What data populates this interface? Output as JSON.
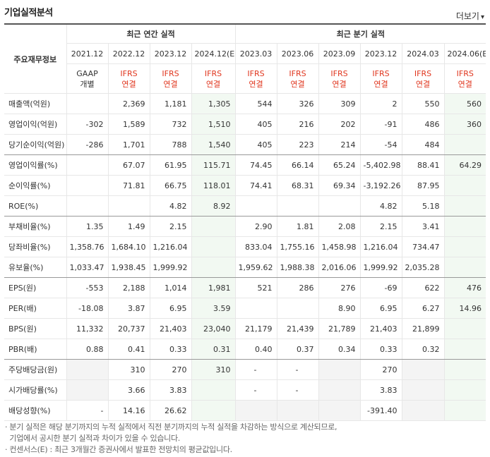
{
  "title": "기업실적분석",
  "more_label": "더보기",
  "more_icon": "chevron-down-icon",
  "header": {
    "row_label": "주요재무정보",
    "annual_group": "최근 연간 실적",
    "quarter_group": "최근 분기 실적",
    "periods": [
      "2021.12",
      "2022.12",
      "2023.12",
      "2024.12(E)",
      "2023.03",
      "2023.06",
      "2023.09",
      "2023.12",
      "2024.03",
      "2024.06(E)"
    ],
    "basis": [
      {
        "top": "GAAP",
        "bottom": "개별",
        "red": false
      },
      {
        "top": "IFRS",
        "bottom": "연결",
        "red": true
      },
      {
        "top": "IFRS",
        "bottom": "연결",
        "red": true
      },
      {
        "top": "IFRS",
        "bottom": "연결",
        "red": true
      },
      {
        "top": "IFRS",
        "bottom": "연결",
        "red": true
      },
      {
        "top": "IFRS",
        "bottom": "연결",
        "red": true
      },
      {
        "top": "IFRS",
        "bottom": "연결",
        "red": true
      },
      {
        "top": "IFRS",
        "bottom": "연결",
        "red": true
      },
      {
        "top": "IFRS",
        "bottom": "연결",
        "red": true
      },
      {
        "top": "IFRS",
        "bottom": "연결",
        "red": true
      }
    ]
  },
  "rows": [
    {
      "label": "매출액(억원)",
      "values": [
        "",
        "2,369",
        "1,181",
        "1,305",
        "544",
        "326",
        "309",
        "2",
        "550",
        "560"
      ]
    },
    {
      "label": "영업이익(억원)",
      "values": [
        "-302",
        "1,589",
        "732",
        "1,510",
        "405",
        "216",
        "202",
        "-91",
        "486",
        "360"
      ]
    },
    {
      "label": "당기순이익(억원)",
      "values": [
        "-286",
        "1,701",
        "788",
        "1,540",
        "405",
        "223",
        "214",
        "-54",
        "484",
        ""
      ]
    },
    {
      "label": "영업이익률(%)",
      "values": [
        "",
        "67.07",
        "61.95",
        "115.71",
        "74.45",
        "66.14",
        "65.24",
        "-5,402.98",
        "88.41",
        "64.29"
      ]
    },
    {
      "label": "순이익률(%)",
      "values": [
        "",
        "71.81",
        "66.75",
        "118.01",
        "74.41",
        "68.31",
        "69.34",
        "-3,192.26",
        "87.95",
        ""
      ]
    },
    {
      "label": "ROE(%)",
      "values": [
        "",
        "",
        "4.82",
        "8.92",
        "",
        "",
        "",
        "4.82",
        "5.18",
        ""
      ]
    },
    {
      "label": "부채비율(%)",
      "values": [
        "1.35",
        "1.49",
        "2.15",
        "",
        "2.90",
        "1.81",
        "2.08",
        "2.15",
        "3.41",
        ""
      ]
    },
    {
      "label": "당좌비율(%)",
      "values": [
        "1,358.76",
        "1,684.10",
        "1,216.04",
        "",
        "833.04",
        "1,755.16",
        "1,458.98",
        "1,216.04",
        "734.47",
        ""
      ]
    },
    {
      "label": "유보율(%)",
      "values": [
        "1,033.47",
        "1,938.45",
        "1,999.92",
        "",
        "1,959.62",
        "1,988.38",
        "2,016.06",
        "1,999.92",
        "2,035.28",
        ""
      ]
    },
    {
      "label": "EPS(원)",
      "values": [
        "-553",
        "2,188",
        "1,014",
        "1,981",
        "521",
        "286",
        "276",
        "-69",
        "622",
        "476"
      ]
    },
    {
      "label": "PER(배)",
      "values": [
        "-18.08",
        "3.87",
        "6.95",
        "3.59",
        "",
        "",
        "8.90",
        "6.95",
        "6.27",
        "14.96"
      ]
    },
    {
      "label": "BPS(원)",
      "values": [
        "11,332",
        "20,737",
        "21,403",
        "23,040",
        "21,179",
        "21,439",
        "21,789",
        "21,403",
        "21,899",
        ""
      ]
    },
    {
      "label": "PBR(배)",
      "values": [
        "0.88",
        "0.41",
        "0.33",
        "0.31",
        "0.40",
        "0.37",
        "0.34",
        "0.33",
        "0.32",
        ""
      ]
    },
    {
      "label": "주당배당금(원)",
      "values": [
        "",
        "310",
        "270",
        "310",
        "-",
        "-",
        "",
        "270",
        "",
        ""
      ]
    },
    {
      "label": "시가배당률(%)",
      "values": [
        "",
        "3.66",
        "3.83",
        "",
        "-",
        "-",
        "",
        "3.83",
        "",
        ""
      ]
    },
    {
      "label": "배당성향(%)",
      "values": [
        "-",
        "14.16",
        "26.62",
        "",
        "",
        "",
        "",
        "-391.40",
        "",
        ""
      ]
    }
  ],
  "notes": [
    "· 분기 실적은 해당 분기까지의 누적 실적에서 직전 분기까지의 누적 실적을 차감하는 방식으로 계산되므로,",
    "  기업에서 공시한 분기 실적과 차이가 있을 수 있습니다.",
    "· 컨센서스(E) : 최근 3개월간 증권사에서 발표한 전망치의 평균값입니다."
  ],
  "colors": {
    "negative": "#e0361e",
    "estimate_bg": "#f2f9f2",
    "header_bg": "#f4f4f4"
  }
}
